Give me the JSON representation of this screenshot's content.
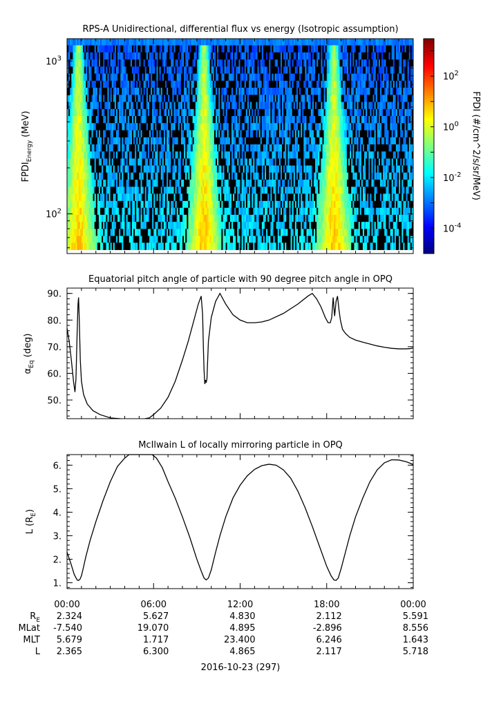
{
  "chart_data": [
    {
      "type": "heatmap",
      "title": "RPS-A Unidirectional, differential flux vs energy (Isotropic assumption)",
      "ylabel_main": "FPDI",
      "ylabel_sub": "Energy",
      "ylabel_unit": " (MeV)",
      "yscale": "log",
      "ylim": [
        55,
        1400
      ],
      "yticks": [
        {
          "value": 100,
          "base": "10",
          "exp": "2"
        },
        {
          "value": 1000,
          "base": "10",
          "exp": "3"
        }
      ],
      "energy_bands": [
        58,
        65,
        72,
        80,
        89,
        99,
        110,
        122,
        136,
        151,
        168,
        187,
        208,
        231,
        257,
        286,
        318,
        354,
        394,
        438,
        487,
        542,
        603,
        671,
        746,
        830,
        923,
        1027,
        1143,
        1272,
        1400
      ],
      "peaks_hours": [
        0.8,
        9.5,
        18.5
      ],
      "colorbar": {
        "label": "FPDI (#/cm^2/s/sr/MeV)",
        "scale": "log",
        "range": [
          1e-05,
          3000
        ],
        "ticks": [
          {
            "value": 0.0001,
            "base": "10",
            "exp": "-4"
          },
          {
            "value": 0.01,
            "base": "10",
            "exp": "-2"
          },
          {
            "value": 1,
            "base": "10",
            "exp": "0"
          },
          {
            "value": 100,
            "base": "10",
            "exp": "2"
          }
        ],
        "colormap": [
          "#00007f",
          "#0000ff",
          "#007fff",
          "#00ffff",
          "#7fff7f",
          "#ffff00",
          "#ff7f00",
          "#ff0000",
          "#7f0000"
        ]
      }
    },
    {
      "type": "line",
      "title": "Equatorial pitch angle of particle with 90 degree pitch angle in OPQ",
      "ylabel_main": "α",
      "ylabel_sub": "Eq",
      "ylabel_unit": " (deg)",
      "ylim": [
        43,
        92
      ],
      "yticks": [
        "50.",
        "60.",
        "70.",
        "80.",
        "90."
      ],
      "x": [
        0,
        0.15,
        0.3,
        0.45,
        0.55,
        0.62,
        0.7,
        0.76,
        0.8,
        0.85,
        0.92,
        1.0,
        1.15,
        1.4,
        1.8,
        2.3,
        3.0,
        3.7,
        4.2,
        5.0,
        5.4,
        5.7,
        6.0,
        6.5,
        7.0,
        7.5,
        8.0,
        8.4,
        8.8,
        9.1,
        9.3,
        9.4,
        9.45,
        9.5,
        9.55,
        9.6,
        9.65,
        9.7,
        9.8,
        10.0,
        10.3,
        10.6,
        11.0,
        11.5,
        12.0,
        12.5,
        13.0,
        13.5,
        14.0,
        15.0,
        16.0,
        16.7,
        17.0,
        17.3,
        17.6,
        17.9,
        18.1,
        18.25,
        18.35,
        18.45,
        18.55,
        18.65,
        18.75,
        18.85,
        18.95,
        19.1,
        19.3,
        19.6,
        20.0,
        20.5,
        21.0,
        21.5,
        22.0,
        22.5,
        23.0,
        23.5,
        23.8,
        24.0
      ],
      "series": [
        {
          "values": [
            77,
            72,
            65,
            57,
            53,
            58,
            75,
            86,
            88.5,
            80,
            65,
            57,
            52,
            48.5,
            46,
            44.5,
            43.3,
            43,
            null,
            null,
            43,
            43.3,
            44.5,
            47,
            51,
            57,
            65,
            72,
            80,
            86,
            89,
            82,
            70,
            61,
            56,
            57.5,
            56.5,
            58,
            72,
            81,
            87,
            90,
            86,
            82,
            80,
            79,
            79,
            79.3,
            80,
            82.5,
            86,
            89,
            90,
            88,
            85,
            81,
            79,
            79,
            81,
            88.5,
            81.5,
            87,
            89,
            84,
            80,
            76.5,
            75,
            73.5,
            72.5,
            71.7,
            71,
            70.3,
            69.8,
            69.4,
            69.2,
            69.2,
            69.3,
            69.5
          ]
        }
      ]
    },
    {
      "type": "line",
      "title": "McIlwain L of locally mirroring particle in OPQ",
      "ylabel_main": "L (R",
      "ylabel_sub": "E",
      "ylabel_unit": ")",
      "ylim": [
        0.75,
        6.45
      ],
      "yticks": [
        "1.",
        "2.",
        "3.",
        "4.",
        "5.",
        "6."
      ],
      "x": [
        0,
        0.25,
        0.5,
        0.7,
        0.8,
        0.9,
        1.0,
        1.1,
        1.3,
        1.6,
        2.0,
        2.5,
        3.0,
        3.5,
        4.0,
        4.3,
        5.9,
        6.2,
        6.6,
        7.0,
        7.5,
        8.0,
        8.5,
        9.0,
        9.3,
        9.5,
        9.65,
        9.8,
        10.0,
        10.3,
        10.6,
        11.0,
        11.5,
        12.0,
        12.5,
        13.0,
        13.5,
        14.0,
        14.5,
        15.0,
        15.5,
        16.0,
        16.5,
        17.0,
        17.5,
        18.0,
        18.3,
        18.5,
        18.65,
        18.8,
        19.0,
        19.3,
        19.6,
        20.0,
        20.5,
        21.0,
        21.5,
        22.0,
        22.5,
        23.0,
        23.5,
        24.0
      ],
      "series": [
        {
          "values": [
            2.3,
            1.85,
            1.35,
            1.12,
            1.1,
            1.15,
            1.3,
            1.55,
            2.1,
            2.8,
            3.6,
            4.5,
            5.3,
            5.95,
            6.3,
            6.45,
            6.45,
            6.3,
            5.9,
            5.3,
            4.6,
            3.8,
            2.95,
            2.0,
            1.5,
            1.2,
            1.12,
            1.2,
            1.55,
            2.3,
            3.0,
            3.8,
            4.6,
            5.15,
            5.55,
            5.82,
            5.98,
            6.04,
            6.0,
            5.8,
            5.45,
            4.9,
            4.2,
            3.4,
            2.55,
            1.7,
            1.3,
            1.12,
            1.1,
            1.2,
            1.6,
            2.3,
            3.0,
            3.8,
            4.6,
            5.3,
            5.8,
            6.1,
            6.23,
            6.22,
            6.15,
            6.03
          ]
        }
      ]
    }
  ],
  "time_axis": {
    "ticks": [
      "00:00",
      "06:00",
      "12:00",
      "18:00",
      "00:00"
    ],
    "date_label": "2016-10-23 (297)"
  },
  "ephemeris": {
    "rows": [
      {
        "label": "R",
        "label_sub": "E",
        "values": [
          "2.324",
          "5.627",
          "4.830",
          "2.112",
          "5.591"
        ]
      },
      {
        "label": "MLat",
        "label_sub": "",
        "values": [
          "-7.540",
          "19.070",
          "4.895",
          "-2.896",
          "8.556"
        ]
      },
      {
        "label": "MLT",
        "label_sub": "",
        "values": [
          "5.679",
          "1.717",
          "23.400",
          "6.246",
          "1.643"
        ]
      },
      {
        "label": "L",
        "label_sub": "",
        "values": [
          "2.365",
          "6.300",
          "4.865",
          "2.117",
          "5.718"
        ]
      }
    ]
  }
}
